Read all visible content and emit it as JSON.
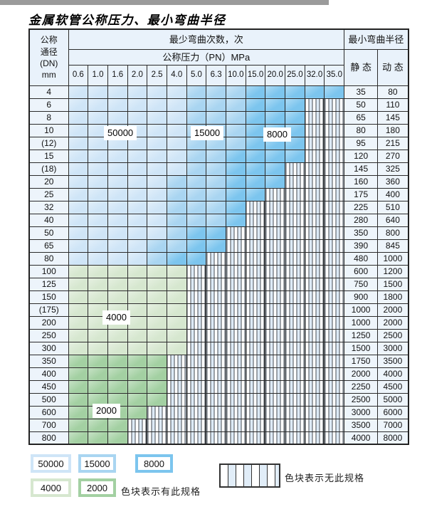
{
  "title": "金属软管公称压力、最小弯曲半径",
  "table": {
    "dn_header_lines": [
      "公称",
      "通径",
      "(DN)",
      "mm"
    ],
    "cycles_header": "最少弯曲次数，次",
    "pressure_header": "公称压力（PN）MPa",
    "radius_header": "最小弯曲半径",
    "static_header": "静 态",
    "dynamic_header": "动 态",
    "pressure_columns": [
      "0.6",
      "1.0",
      "1.6",
      "2.0",
      "2.5",
      "4.0",
      "5.0",
      "6.3",
      "10.0",
      "15.0",
      "20.0",
      "25.0",
      "32.0",
      "35.0"
    ],
    "cell_codes": {
      "L": "50000",
      "M": "15000",
      "D": "8000",
      "G": "4000",
      "E": "2000",
      "X": "no-spec"
    },
    "rows": [
      {
        "dn": "4",
        "cells": "LLLLLLMMMDDDDD",
        "static": "35",
        "dynamic": "80"
      },
      {
        "dn": "6",
        "cells": "LLLLLLMMMDDDXX",
        "static": "50",
        "dynamic": "110"
      },
      {
        "dn": "8",
        "cells": "LLLLLLMMMDDDXX",
        "static": "65",
        "dynamic": "145"
      },
      {
        "dn": "10",
        "cells": "LLLLLLMMMDDDXX",
        "static": "80",
        "dynamic": "180"
      },
      {
        "dn": "(12)",
        "cells": "LLLLLLMMMDDDXX",
        "static": "95",
        "dynamic": "215"
      },
      {
        "dn": "15",
        "cells": "LLLLLLMMDDDDXX",
        "static": "120",
        "dynamic": "270"
      },
      {
        "dn": "(18)",
        "cells": "LLLLLLMMDDDXXX",
        "static": "145",
        "dynamic": "325"
      },
      {
        "dn": "20",
        "cells": "LLLLLMMMDDDXXX",
        "static": "160",
        "dynamic": "360"
      },
      {
        "dn": "25",
        "cells": "LLLLLMMMDDXXXX",
        "static": "175",
        "dynamic": "400"
      },
      {
        "dn": "32",
        "cells": "LLLLLMMMDXXXXX",
        "static": "225",
        "dynamic": "510"
      },
      {
        "dn": "40",
        "cells": "LLLLLMMMDXXXXX",
        "static": "280",
        "dynamic": "640"
      },
      {
        "dn": "50",
        "cells": "LLLLLMDDXXXXXX",
        "static": "350",
        "dynamic": "800"
      },
      {
        "dn": "65",
        "cells": "LLLLMMDDXXXXXX",
        "static": "390",
        "dynamic": "845"
      },
      {
        "dn": "80",
        "cells": "LLLLMDDXXXXXXX",
        "static": "480",
        "dynamic": "1000"
      },
      {
        "dn": "100",
        "cells": "GGGGGGXXXXXXXX",
        "static": "600",
        "dynamic": "1200"
      },
      {
        "dn": "125",
        "cells": "GGGGGGXXXXXXXX",
        "static": "750",
        "dynamic": "1500"
      },
      {
        "dn": "150",
        "cells": "GGGGGGXXXXXXXX",
        "static": "900",
        "dynamic": "1800"
      },
      {
        "dn": "(175)",
        "cells": "GGGGGGXXXXXXXX",
        "static": "1000",
        "dynamic": "2000"
      },
      {
        "dn": "200",
        "cells": "GGGGGGXXXXXXXX",
        "static": "1000",
        "dynamic": "2000"
      },
      {
        "dn": "250",
        "cells": "GGGGGGXXXXXXXX",
        "static": "1250",
        "dynamic": "2500"
      },
      {
        "dn": "300",
        "cells": "GGGGGGXXXXXXXX",
        "static": "1500",
        "dynamic": "3000"
      },
      {
        "dn": "350",
        "cells": "EEEEEXXXXXXXXX",
        "static": "1750",
        "dynamic": "3500"
      },
      {
        "dn": "400",
        "cells": "EEEEEXXXXXXXXX",
        "static": "2000",
        "dynamic": "4000"
      },
      {
        "dn": "450",
        "cells": "EEEEEXXXXXXXXX",
        "static": "2250",
        "dynamic": "4500"
      },
      {
        "dn": "500",
        "cells": "EEEEEXXXXXXXXX",
        "static": "2500",
        "dynamic": "5000"
      },
      {
        "dn": "600",
        "cells": "EEEEXXXXXXXXXX",
        "static": "3000",
        "dynamic": "6000"
      },
      {
        "dn": "700",
        "cells": "EEEXXXXXXXXXXX",
        "static": "3500",
        "dynamic": "7000"
      },
      {
        "dn": "800",
        "cells": "EEEXXXXXXXXXXX",
        "static": "4000",
        "dynamic": "8000"
      }
    ]
  },
  "overlay_labels": [
    "50000",
    "15000",
    "8000",
    "4000",
    "2000"
  ],
  "legend": {
    "items": [
      {
        "label": "50000",
        "color": "#cfe5f7"
      },
      {
        "label": "15000",
        "color": "#a9d5f1"
      },
      {
        "label": "8000",
        "color": "#7cc5ee"
      },
      {
        "label": "4000",
        "color": "#d6e7cf"
      },
      {
        "label": "2000",
        "color": "#a3d0a2"
      }
    ],
    "has_spec_note": "色块表示有此规格",
    "no_spec_note": "色块表示无此规格"
  },
  "colors": {
    "cell_50000": "#cfe5f7",
    "cell_15000": "#a9d5f1",
    "cell_8000": "#7cc5ee",
    "cell_4000": "#d6e7cf",
    "cell_2000": "#a3d0a2",
    "header_bg": "#e9f2fb",
    "border": "#2b2b2b"
  }
}
